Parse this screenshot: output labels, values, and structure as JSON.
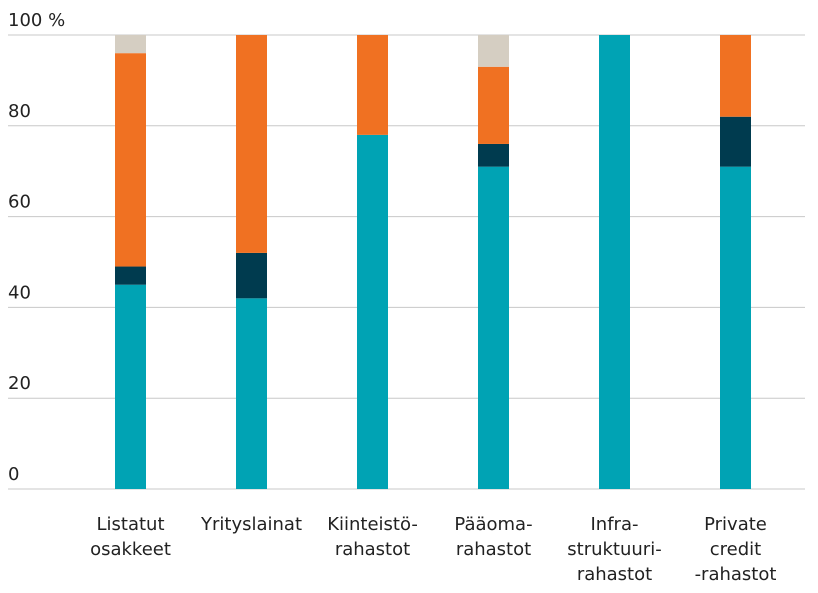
{
  "chart_data": {
    "type": "stacked-bar",
    "categories": [
      "Listatut\nosakkeet",
      "Yrityslainat",
      "Kiinteistö-\nrahastot",
      "Pääoma-\nrahastot",
      "Infra-\nstruktuuri-\nrahastot",
      "Private\ncredit\n-rahastot"
    ],
    "series": [
      {
        "color": "#00a3b4",
        "values": [
          45,
          42,
          78,
          71,
          100,
          71
        ]
      },
      {
        "color": "#003b4f",
        "values": [
          4,
          10,
          0,
          5,
          0,
          11
        ]
      },
      {
        "color": "#f07122",
        "values": [
          47,
          48,
          22,
          17,
          0,
          18
        ]
      },
      {
        "color": "#d5cec2",
        "values": [
          4,
          0,
          0,
          7,
          0,
          0
        ]
      }
    ],
    "ylim": [
      0,
      100
    ],
    "yticks": [
      0,
      20,
      40,
      60,
      80,
      {
        "value": 100,
        "label": "100 %"
      }
    ],
    "grid": true
  }
}
